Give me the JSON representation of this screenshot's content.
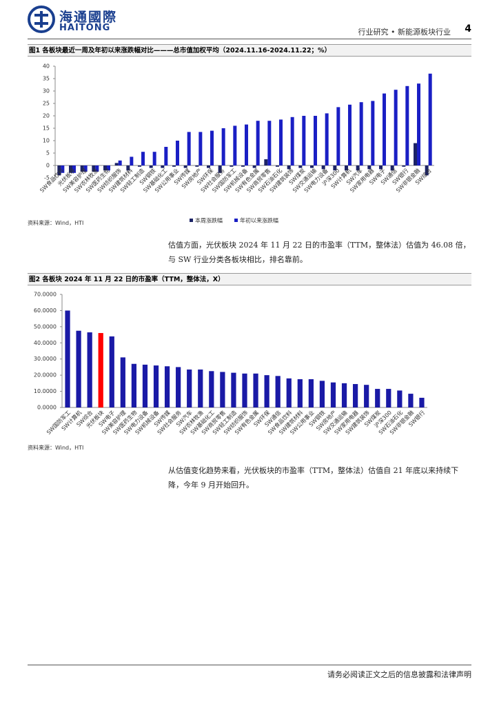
{
  "header": {
    "logo_cn": "海通國際",
    "logo_en": "HAITONG",
    "section": "行业研究 • 新能源板块行业",
    "page": "4"
  },
  "chart_data": [
    {
      "type": "bar",
      "title": "图1  各板块最近一周及年初以来涨跌幅对比———总市值加权平均（2024.11.16-2024.11.22；%）",
      "categories": [
        "SW食品饮料",
        "光伏板块",
        "SW美容护理",
        "SW农林牧渔",
        "SW医药生物",
        "SW纺织服饰",
        "SW建筑材料",
        "SW轻工制造",
        "SW钢铁",
        "SW基础化工",
        "SW公用事业",
        "SW传媒",
        "SW房地产",
        "SW环保",
        "SW社会服务",
        "SW国防军工",
        "SW机械设备",
        "SW有色金属",
        "SW商贸零售",
        "SW石油石化",
        "SW建筑装饰",
        "SW煤炭",
        "SW交通运输",
        "SW电力设备",
        "沪深300",
        "SW计算机",
        "SW汽车",
        "SW家用电器",
        "SW电子",
        "SW通信",
        "SW银行",
        "SW非银金融",
        "SW综合"
      ],
      "series": [
        {
          "name": "本周涨跌幅",
          "color": "#1c2366",
          "values": [
            -4,
            -3,
            -2.5,
            -2.5,
            -2,
            1,
            -2,
            -0.5,
            -1,
            -1,
            -0.5,
            -1,
            -0.5,
            -1,
            -3,
            -0.5,
            -0.5,
            -1,
            2.5,
            -0.5,
            -1.5,
            -1,
            -1,
            -1.5,
            -2,
            -2,
            -2,
            -1.5,
            -1.5,
            -2,
            -0.5,
            9,
            -4
          ]
        },
        {
          "name": "年初以来涨跌幅",
          "color": "#1a1fc4",
          "values": [
            -3,
            -3,
            -2.5,
            -2.5,
            -2,
            2,
            3.5,
            5.5,
            5.5,
            7.5,
            10,
            13.5,
            13.5,
            14,
            15,
            16,
            16.5,
            18,
            18,
            18.5,
            19.5,
            20,
            20,
            21,
            23.5,
            24.5,
            25.5,
            26,
            29,
            30.5,
            32,
            33,
            37
          ]
        }
      ],
      "ylim": [
        -5,
        40
      ],
      "yticks": [
        -5,
        0,
        5,
        10,
        15,
        20,
        25,
        30,
        35,
        40
      ],
      "legend": "bottom",
      "source": "资料来源：Wind，HTI"
    },
    {
      "type": "bar",
      "title": "图2  各板块 2024 年 11 月 22 日的市盈率（TTM，整体法，X）",
      "categories": [
        "SW国防军工",
        "SW计算机",
        "SW综合",
        "光伏板块",
        "SW电子",
        "SW美容护理",
        "SW医药生物",
        "SW电力设备",
        "SW机械设备",
        "SW传媒",
        "SW社会服务",
        "SW汽车",
        "SW农林牧渔",
        "SW基础化工",
        "SW商贸零售",
        "SW轻工制造",
        "SW纺织服饰",
        "SW有色金属",
        "SW环保",
        "SW通信",
        "SW食品饮料",
        "SW建筑材料",
        "SW公用事业",
        "SW钢铁",
        "SW房地产",
        "SW交通运输",
        "SW家用电器",
        "SW建筑装饰",
        "SW煤炭",
        "沪深300",
        "SW石油石化",
        "SW非银金融",
        "SW银行"
      ],
      "values": [
        60,
        47.5,
        46.5,
        46.08,
        44,
        31,
        27,
        26.5,
        26,
        25.5,
        25,
        23.5,
        23.5,
        22.5,
        22,
        21.5,
        21,
        21,
        20,
        19.5,
        18,
        17.5,
        17.5,
        16.5,
        15.5,
        15,
        14.5,
        14,
        11.5,
        11.5,
        10.5,
        8.5,
        6
      ],
      "colors": [
        "#1a1aa6",
        "#1a1aa6",
        "#1a1aa6",
        "#ff0000",
        "#1a1aa6",
        "#1a1aa6",
        "#1a1aa6",
        "#1a1aa6",
        "#1a1aa6",
        "#1a1aa6",
        "#1a1aa6",
        "#1a1aa6",
        "#1a1aa6",
        "#1a1aa6",
        "#1a1aa6",
        "#1a1aa6",
        "#1a1aa6",
        "#1a1aa6",
        "#1a1aa6",
        "#1a1aa6",
        "#1a1aa6",
        "#1a1aa6",
        "#1a1aa6",
        "#1a1aa6",
        "#1a1aa6",
        "#1a1aa6",
        "#1a1aa6",
        "#1a1aa6",
        "#1a1aa6",
        "#1a1aa6",
        "#1a1aa6",
        "#1a1aa6",
        "#1a1aa6"
      ],
      "ylim": [
        0,
        70
      ],
      "yticks": [
        {
          "value": 0,
          "label": "0.0000"
        },
        {
          "value": 10,
          "label": "10.0000"
        },
        {
          "value": 20,
          "label": "20.0000"
        },
        {
          "value": 30,
          "label": "30.0000"
        },
        {
          "value": 40,
          "label": "40.0000"
        },
        {
          "value": 50,
          "label": "50.0000"
        },
        {
          "value": 60,
          "label": "60.0000"
        },
        {
          "value": 70,
          "label": "70.0000"
        }
      ],
      "source": "资料来源：Wind，HTI"
    }
  ],
  "paragraphs": [
    "估值方面，光伏板块 2024 年 11 月 22 日的市盈率（TTM，整体法）估值为 46.08 倍，与 SW 行业分类各板块相比，排名靠前。",
    "从估值变化趋势来看，光伏板块的市盈率（TTM，整体法）估值自 21 年底以来持续下降，今年 9 月开始回升。"
  ],
  "footer": "请务必阅读正文之后的信息披露和法律声明"
}
